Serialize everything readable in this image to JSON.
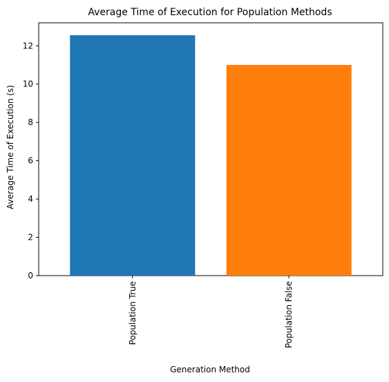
{
  "chart_data": {
    "type": "bar",
    "title": "Average Time of Execution for Population Methods",
    "xlabel": "Generation Method",
    "ylabel": "Average Time of Execution (s)",
    "categories": [
      "Population True",
      "Population False"
    ],
    "values": [
      12.55,
      11.0
    ],
    "colors": [
      "#1f77b4",
      "#ff7f0e"
    ],
    "ylim": [
      0,
      13.2
    ],
    "yticks": [
      0,
      2,
      4,
      6,
      8,
      10,
      12
    ],
    "grid": false,
    "legend": false
  }
}
